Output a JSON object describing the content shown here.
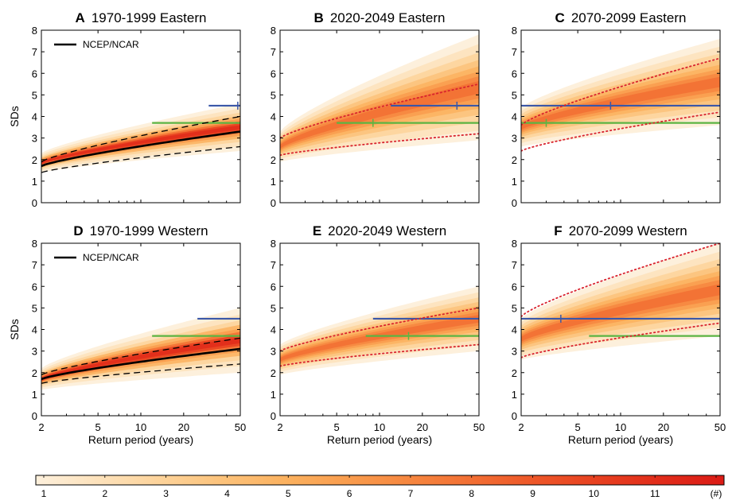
{
  "figure": {
    "ylabel": "SDs",
    "xlabel": "Return period (years)",
    "legend_label": "NCEP/NCAR",
    "colorbar_ticks": [
      "1",
      "2",
      "3",
      "4",
      "5",
      "6",
      "7",
      "8",
      "9",
      "10",
      "11",
      "(#)"
    ],
    "colorbar_colors": [
      "#fdf0dc",
      "#fde2bb",
      "#fdd39a",
      "#fcc27a",
      "#fbb15f",
      "#f99c4d",
      "#f6863f",
      "#f26e33",
      "#ed5628",
      "#e74020",
      "#e12c1a",
      "#db1b16"
    ]
  },
  "chart_data": [
    {
      "type": "area",
      "letter": "A",
      "title": "1970-1999 Eastern",
      "x_ticks": [
        "2",
        "5",
        "10",
        "20",
        "50"
      ],
      "y_ticks": [
        "0",
        "1",
        "2",
        "3",
        "4",
        "5",
        "6",
        "7",
        "8"
      ],
      "xlim": [
        2,
        50
      ],
      "ylim": [
        0,
        8
      ],
      "xscale": "log",
      "legend": true,
      "ncep": true,
      "palette": "hist",
      "blue_line": {
        "y": 4.5,
        "x_from": 30,
        "marker_x": 48
      },
      "green_line": {
        "y": 3.7,
        "x_from": 12,
        "marker_x": null
      },
      "ensemble_band": {
        "start": [
          1.4,
          2.3
        ],
        "end": [
          2.4,
          4.6
        ]
      },
      "ncep_curve": {
        "start": 1.7,
        "end": 3.3
      },
      "ncep_ci": {
        "lower": [
          1.4,
          2.6
        ],
        "upper": [
          1.9,
          4.0
        ]
      }
    },
    {
      "type": "area",
      "letter": "B",
      "title": "2020-2049 Eastern",
      "x_ticks": [
        "2",
        "5",
        "10",
        "20",
        "50"
      ],
      "y_ticks": [
        "0",
        "1",
        "2",
        "3",
        "4",
        "5",
        "6",
        "7",
        "8"
      ],
      "xlim": [
        2,
        50
      ],
      "ylim": [
        0,
        8
      ],
      "xscale": "log",
      "legend": false,
      "ncep": false,
      "palette": "future",
      "blue_line": {
        "y": 4.5,
        "x_from": 12,
        "marker_x": 35
      },
      "green_line": {
        "y": 3.7,
        "x_from": 5,
        "marker_x": 9
      },
      "ensemble_band": {
        "start": [
          1.9,
          3.3
        ],
        "end": [
          2.9,
          7.8
        ]
      },
      "ensemble_median": {
        "start": 2.6,
        "end": 4.3
      },
      "ensemble_ci": {
        "lower": [
          2.2,
          3.2
        ],
        "upper": [
          3.0,
          5.5
        ]
      }
    },
    {
      "type": "area",
      "letter": "C",
      "title": "2070-2099 Eastern",
      "x_ticks": [
        "2",
        "5",
        "10",
        "20",
        "50"
      ],
      "y_ticks": [
        "0",
        "1",
        "2",
        "3",
        "4",
        "5",
        "6",
        "7",
        "8"
      ],
      "xlim": [
        2,
        50
      ],
      "ylim": [
        0,
        8
      ],
      "xscale": "log",
      "legend": false,
      "ncep": false,
      "palette": "future",
      "blue_line": {
        "y": 4.5,
        "x_from": 2,
        "marker_x": 8.5
      },
      "green_line": {
        "y": 3.7,
        "x_from": 2,
        "marker_x": 3
      },
      "ensemble_band": {
        "start": [
          2.6,
          4.4
        ],
        "end": [
          3.6,
          7.6
        ]
      },
      "ensemble_median": {
        "start": 3.2,
        "end": 5.6
      },
      "ensemble_ci": {
        "lower": [
          2.4,
          4.2
        ],
        "upper": [
          3.6,
          6.7
        ]
      }
    },
    {
      "type": "area",
      "letter": "D",
      "title": "1970-1999 Western",
      "x_ticks": [
        "2",
        "5",
        "10",
        "20",
        "50"
      ],
      "y_ticks": [
        "0",
        "1",
        "2",
        "3",
        "4",
        "5",
        "6",
        "7",
        "8"
      ],
      "xlim": [
        2,
        50
      ],
      "ylim": [
        0,
        8
      ],
      "xscale": "log",
      "legend": true,
      "ncep": true,
      "palette": "hist",
      "blue_line": {
        "y": 4.5,
        "x_from": 25,
        "marker_x": null
      },
      "green_line": {
        "y": 3.7,
        "x_from": 12,
        "marker_x": null
      },
      "ensemble_band": {
        "start": [
          1.2,
          2.2
        ],
        "end": [
          2.0,
          5.0
        ]
      },
      "ncep_curve": {
        "start": 1.7,
        "end": 3.1
      },
      "ncep_ci": {
        "lower": [
          1.5,
          2.4
        ],
        "upper": [
          1.9,
          3.6
        ]
      }
    },
    {
      "type": "area",
      "letter": "E",
      "title": "2020-2049 Western",
      "x_ticks": [
        "2",
        "5",
        "10",
        "20",
        "50"
      ],
      "y_ticks": [
        "0",
        "1",
        "2",
        "3",
        "4",
        "5",
        "6",
        "7",
        "8"
      ],
      "xlim": [
        2,
        50
      ],
      "ylim": [
        0,
        8
      ],
      "xscale": "log",
      "legend": false,
      "ncep": false,
      "palette": "future",
      "blue_line": {
        "y": 4.5,
        "x_from": 9,
        "marker_x": null
      },
      "green_line": {
        "y": 3.7,
        "x_from": 8,
        "marker_x": 16
      },
      "ensemble_band": {
        "start": [
          1.9,
          3.3
        ],
        "end": [
          3.0,
          6.0
        ]
      },
      "ensemble_median": {
        "start": 2.6,
        "end": 4.3
      },
      "ensemble_ci": {
        "lower": [
          2.3,
          3.3
        ],
        "upper": [
          3.0,
          5.0
        ]
      }
    },
    {
      "type": "area",
      "letter": "F",
      "title": "2070-2099 Western",
      "x_ticks": [
        "2",
        "5",
        "10",
        "20",
        "50"
      ],
      "y_ticks": [
        "0",
        "1",
        "2",
        "3",
        "4",
        "5",
        "6",
        "7",
        "8"
      ],
      "xlim": [
        2,
        50
      ],
      "ylim": [
        0,
        8
      ],
      "xscale": "log",
      "legend": false,
      "ncep": false,
      "palette": "future",
      "blue_line": {
        "y": 4.5,
        "x_from": 2,
        "marker_x": 3.8
      },
      "green_line": {
        "y": 3.7,
        "x_from": 6,
        "marker_x": null
      },
      "ensemble_band": {
        "start": [
          2.6,
          4.5
        ],
        "end": [
          3.7,
          8.0
        ]
      },
      "ensemble_median": {
        "start": 4.0,
        "end": 6.2
      },
      "ensemble_ci": {
        "lower": [
          2.7,
          4.3
        ],
        "upper": [
          4.6,
          8.0
        ]
      }
    }
  ]
}
